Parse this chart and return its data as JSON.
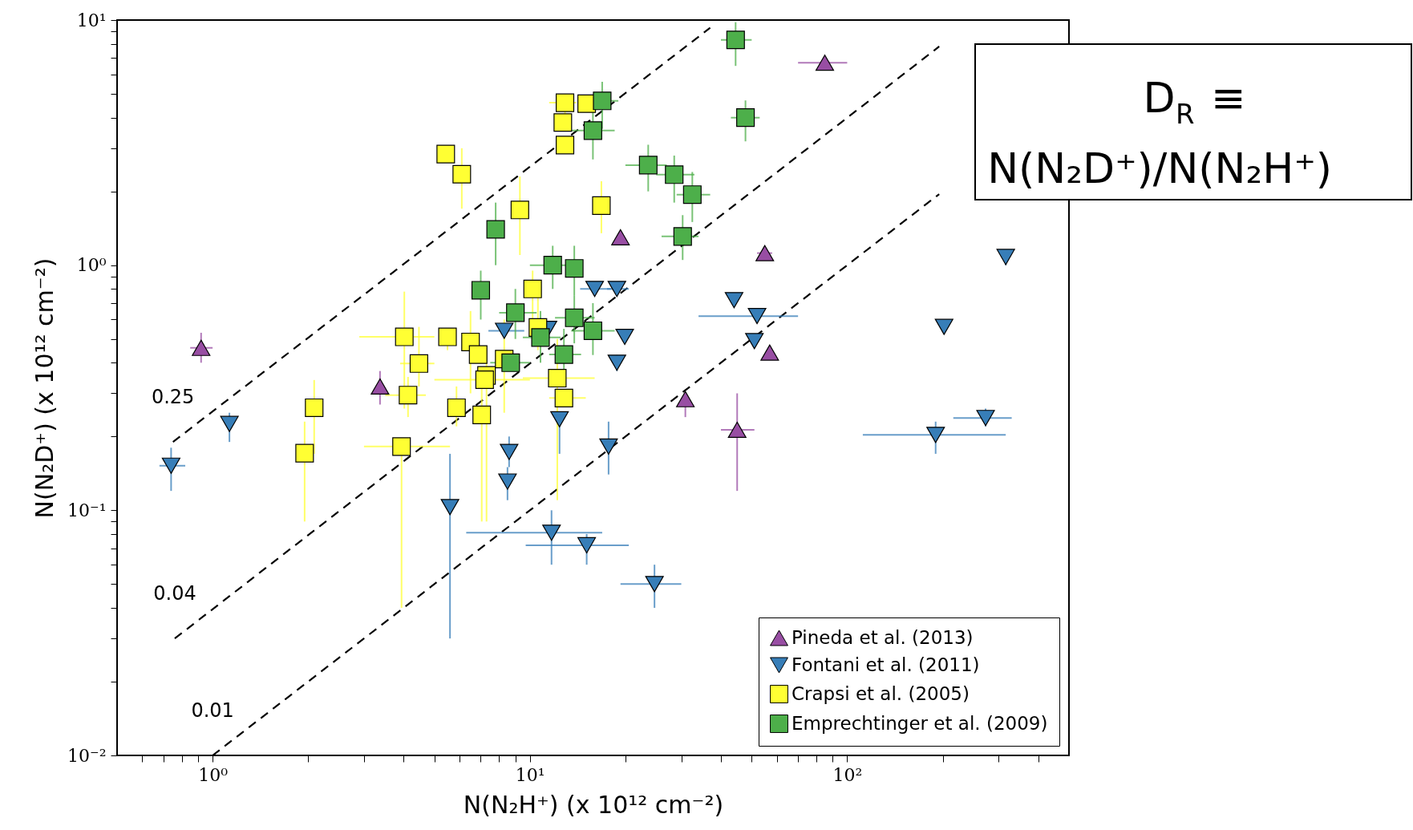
{
  "chart_data": {
    "type": "scatter",
    "log": "xy",
    "grid": false,
    "legend": "bottom right",
    "xlabel": "N(N₂H⁺) (x 10¹² cm⁻²)",
    "ylabel": "N(N₂D⁺) (x 10¹² cm⁻²)",
    "xlim": [
      0.5,
      500
    ],
    "ylim": [
      0.01,
      10
    ],
    "xticks": [
      {
        "value": 0.6,
        "label": null
      },
      {
        "value": 0.7,
        "label": null
      },
      {
        "value": 0.8,
        "label": null
      },
      {
        "value": 0.9,
        "label": null
      },
      {
        "value": 1,
        "label": "10⁰"
      },
      {
        "value": 2,
        "label": null
      },
      {
        "value": 3,
        "label": null
      },
      {
        "value": 4,
        "label": null
      },
      {
        "value": 5,
        "label": null
      },
      {
        "value": 6,
        "label": null
      },
      {
        "value": 7,
        "label": null
      },
      {
        "value": 8,
        "label": null
      },
      {
        "value": 9,
        "label": null
      },
      {
        "value": 10,
        "label": "10¹"
      },
      {
        "value": 20,
        "label": null
      },
      {
        "value": 30,
        "label": null
      },
      {
        "value": 40,
        "label": null
      },
      {
        "value": 50,
        "label": null
      },
      {
        "value": 60,
        "label": null
      },
      {
        "value": 70,
        "label": null
      },
      {
        "value": 80,
        "label": null
      },
      {
        "value": 90,
        "label": null
      },
      {
        "value": 100,
        "label": "10²"
      },
      {
        "value": 200,
        "label": null
      },
      {
        "value": 300,
        "label": null
      },
      {
        "value": 400,
        "label": null
      }
    ],
    "yticks": [
      {
        "value": 0.01,
        "label": "10⁻²"
      },
      {
        "value": 0.02,
        "label": null
      },
      {
        "value": 0.03,
        "label": null
      },
      {
        "value": 0.04,
        "label": null
      },
      {
        "value": 0.05,
        "label": null
      },
      {
        "value": 0.06,
        "label": null
      },
      {
        "value": 0.07,
        "label": null
      },
      {
        "value": 0.08,
        "label": null
      },
      {
        "value": 0.09,
        "label": null
      },
      {
        "value": 0.1,
        "label": "10⁻¹"
      },
      {
        "value": 0.2,
        "label": null
      },
      {
        "value": 0.3,
        "label": null
      },
      {
        "value": 0.4,
        "label": null
      },
      {
        "value": 0.5,
        "label": null
      },
      {
        "value": 0.6,
        "label": null
      },
      {
        "value": 0.7,
        "label": null
      },
      {
        "value": 0.8,
        "label": null
      },
      {
        "value": 0.9,
        "label": null
      },
      {
        "value": 1,
        "label": "10⁰"
      },
      {
        "value": 2,
        "label": null
      },
      {
        "value": 3,
        "label": null
      },
      {
        "value": 4,
        "label": null
      },
      {
        "value": 5,
        "label": null
      },
      {
        "value": 6,
        "label": null
      },
      {
        "value": 7,
        "label": null
      },
      {
        "value": 8,
        "label": null
      },
      {
        "value": 9,
        "label": null
      },
      {
        "value": 10,
        "label": "10¹"
      }
    ],
    "annotations": [
      "D$_{R}$ ≡",
      "N(N₂D⁺)/N(N₂H⁺)"
    ],
    "series": [
      {
        "name": "0.25",
        "type": "line",
        "color": "#000000",
        "line_style": "dashed",
        "x": [
          0.75,
          37
        ],
        "values": [
          0.19,
          9.3
        ]
      },
      {
        "name": "0.04",
        "type": "line",
        "color": "#000000",
        "line_style": "dashed",
        "x": [
          0.76,
          195
        ],
        "values": [
          0.03,
          7.8
        ]
      },
      {
        "name": "0.01",
        "type": "line",
        "color": "#000000",
        "line_style": "dashed",
        "x": [
          1.0,
          195
        ],
        "values": [
          0.01,
          1.95
        ]
      },
      {
        "name": "Pineda et al. (2013)",
        "color": "#984ea3",
        "marker": "triangle",
        "x": [
          0.92,
          3.37,
          85,
          19.3,
          55,
          57,
          30.9,
          45
        ],
        "values": [
          0.46,
          0.32,
          6.7,
          1.3,
          1.12,
          0.44,
          0.284,
          0.213
        ],
        "errors": [
          [
            0.4,
            0.53
          ],
          [
            0.27,
            0.37
          ],
          null,
          null,
          null,
          null,
          [
            0.24,
            0.3
          ],
          [
            0.12,
            0.3
          ]
        ],
        "xerrors": [
          [
            0.85,
            1.0
          ],
          null,
          [
            70,
            100
          ],
          null,
          [
            52,
            58
          ],
          null,
          null,
          [
            40,
            51
          ]
        ]
      },
      {
        "name": "Fontani et al. (2011)",
        "color": "#377eb8",
        "marker": "triangle-down",
        "x": [
          0.74,
          1.13,
          5.6,
          8.6,
          8.5,
          11.7,
          15.1,
          24.7,
          17.7,
          12.4,
          18.8,
          19.9,
          16.0,
          18.8,
          8.3,
          11.4,
          44,
          52,
          51,
          202,
          316,
          190,
          273
        ],
        "values": [
          0.152,
          0.225,
          0.103,
          0.173,
          0.131,
          0.081,
          0.072,
          0.05,
          0.182,
          0.235,
          0.4,
          0.51,
          0.8,
          0.8,
          0.54,
          0.55,
          0.72,
          0.62,
          0.49,
          0.56,
          1.08,
          0.203,
          0.238
        ],
        "errors": [
          [
            0.12,
            0.18
          ],
          [
            0.19,
            0.25
          ],
          [
            0.03,
            0.17
          ],
          [
            0.15,
            0.2
          ],
          [
            0.11,
            0.15
          ],
          [
            0.06,
            0.1
          ],
          [
            0.06,
            0.08
          ],
          [
            0.04,
            0.06
          ],
          [
            0.14,
            0.23
          ],
          [
            0.17,
            0.235
          ],
          [
            0.37,
            0.43
          ],
          [
            0.48,
            0.54
          ],
          null,
          null,
          null,
          null,
          null,
          null,
          [
            0.46,
            0.52
          ],
          null,
          [
            1.0,
            1.1
          ],
          [
            0.17,
            0.23
          ],
          [
            0.22,
            0.26
          ]
        ],
        "xerrors": [
          [
            0.68,
            0.82
          ],
          null,
          null,
          null,
          null,
          [
            6.3,
            16.9
          ],
          [
            9.7,
            20.5
          ],
          [
            19.3,
            30
          ],
          null,
          null,
          null,
          null,
          [
            14.4,
            18
          ],
          [
            17.5,
            20.5
          ],
          [
            7.4,
            9.6
          ],
          null,
          null,
          [
            34,
            70
          ],
          null,
          null,
          null,
          [
            112,
            316
          ],
          [
            216,
            330
          ]
        ]
      },
      {
        "name": "Crapsi et al. (2005)",
        "color": "#ffff33",
        "marker": "square",
        "x": [
          5.43,
          6.1,
          12.9,
          15.1,
          12.7,
          12.9,
          9.3,
          16.8,
          10.2,
          4.02,
          5.5,
          6.5,
          6.87,
          10.6,
          4.47,
          4.13,
          7.3,
          7.2,
          8.3,
          5.87,
          7.05,
          12.2,
          12.8,
          2.09,
          1.95,
          3.94
        ],
        "values": [
          2.84,
          2.35,
          4.6,
          4.56,
          3.82,
          3.09,
          1.68,
          1.75,
          0.8,
          0.51,
          0.51,
          0.486,
          0.432,
          0.557,
          0.397,
          0.295,
          0.355,
          0.341,
          0.414,
          0.262,
          0.245,
          0.346,
          0.287,
          0.262,
          0.171,
          0.182
        ],
        "errors": [
          null,
          [
            1.7,
            3.0
          ],
          [
            4.1,
            5.0
          ],
          null,
          null,
          null,
          [
            1.1,
            2.3
          ],
          [
            1.35,
            2.2
          ],
          [
            0.55,
            0.95
          ],
          [
            0.26,
            0.78
          ],
          [
            0.45,
            0.55
          ],
          [
            0.3,
            0.65
          ],
          null,
          [
            0.45,
            0.75
          ],
          [
            0.32,
            0.56
          ],
          [
            0.24,
            0.35
          ],
          [
            0.09,
            0.45
          ],
          null,
          [
            0.25,
            0.6
          ],
          [
            0.22,
            0.32
          ],
          [
            0.09,
            0.38
          ],
          [
            0.11,
            0.5
          ],
          null,
          [
            0.17,
            0.34
          ],
          [
            0.09,
            0.23
          ],
          [
            0.04,
            0.18
          ]
        ],
        "xerrors": [
          null,
          [
            5.8,
            6.5
          ],
          [
            11.5,
            14
          ],
          null,
          null,
          null,
          null,
          null,
          null,
          [
            2.9,
            5.0
          ],
          null,
          null,
          null,
          null,
          [
            3.9,
            5.0
          ],
          [
            3.5,
            4.7
          ],
          null,
          [
            5.0,
            10
          ],
          null,
          null,
          null,
          [
            9.5,
            16
          ],
          [
            11.5,
            15
          ],
          null,
          null,
          [
            3.0,
            5.6
          ]
        ]
      },
      {
        "name": "Emprechtinger et al. (2009)",
        "color": "#4daf4a",
        "marker": "square",
        "x": [
          44.5,
          47.8,
          16.9,
          15.8,
          23.6,
          28.5,
          32.5,
          30.3,
          7.8,
          11.8,
          13.8,
          7.0,
          9.0,
          13.8,
          15.8,
          10.8,
          8.7,
          12.8
        ],
        "values": [
          8.3,
          4.0,
          4.68,
          3.54,
          2.56,
          2.34,
          1.94,
          1.31,
          1.4,
          1.0,
          0.97,
          0.79,
          0.64,
          0.61,
          0.54,
          0.507,
          0.4,
          0.432
        ],
        "errors": [
          [
            6.5,
            9.8
          ],
          [
            3.2,
            4.7
          ],
          [
            3.6,
            5.6
          ],
          [
            2.7,
            4.3
          ],
          [
            2.0,
            3.1
          ],
          [
            1.8,
            2.8
          ],
          [
            1.5,
            2.4
          ],
          [
            1.05,
            1.6
          ],
          [
            1.0,
            1.8
          ],
          [
            0.8,
            1.2
          ],
          [
            0.75,
            1.2
          ],
          [
            0.6,
            0.95
          ],
          [
            0.5,
            0.8
          ],
          [
            0.48,
            0.75
          ],
          [
            0.43,
            0.7
          ],
          [
            0.4,
            0.65
          ],
          null,
          [
            0.35,
            0.55
          ]
        ],
        "xerrors": [
          [
            40,
            50
          ],
          [
            43,
            53
          ],
          [
            14.5,
            19
          ],
          [
            13.5,
            18.5
          ],
          [
            20,
            27
          ],
          [
            25,
            33
          ],
          [
            29,
            37
          ],
          [
            26,
            34
          ],
          null,
          [
            10,
            13.0
          ],
          null,
          null,
          [
            8,
            10.5
          ],
          [
            12,
            16
          ],
          [
            13.5,
            18.5
          ],
          [
            9.5,
            12.5
          ],
          [
            7.5,
            10
          ],
          [
            11.5,
            14.5
          ]
        ]
      }
    ]
  }
}
